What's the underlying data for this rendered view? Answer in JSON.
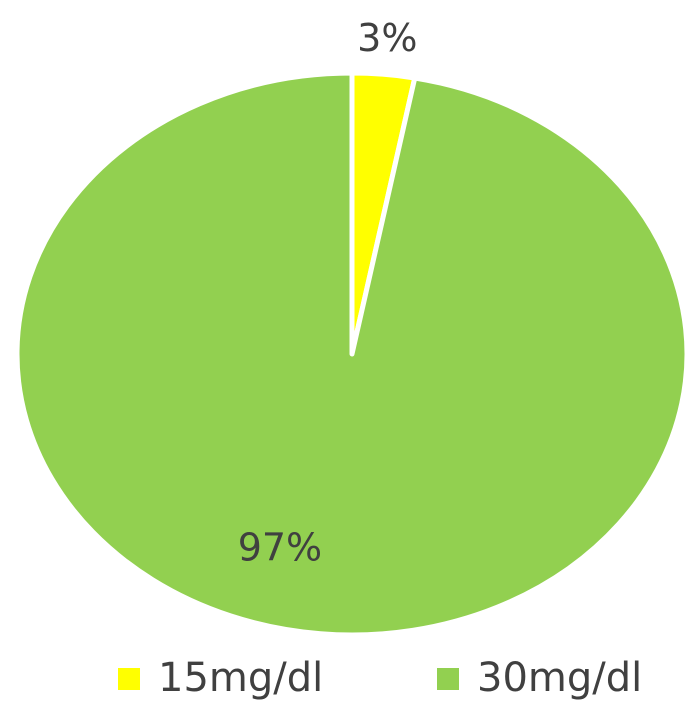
{
  "chart_data": {
    "type": "pie",
    "categories": [
      "15mg/dl",
      "30mg/dl"
    ],
    "values": [
      3,
      97
    ],
    "value_labels": [
      "3%",
      "97%"
    ],
    "colors": [
      "#ffff00",
      "#92d050"
    ],
    "legend": "bottom"
  }
}
